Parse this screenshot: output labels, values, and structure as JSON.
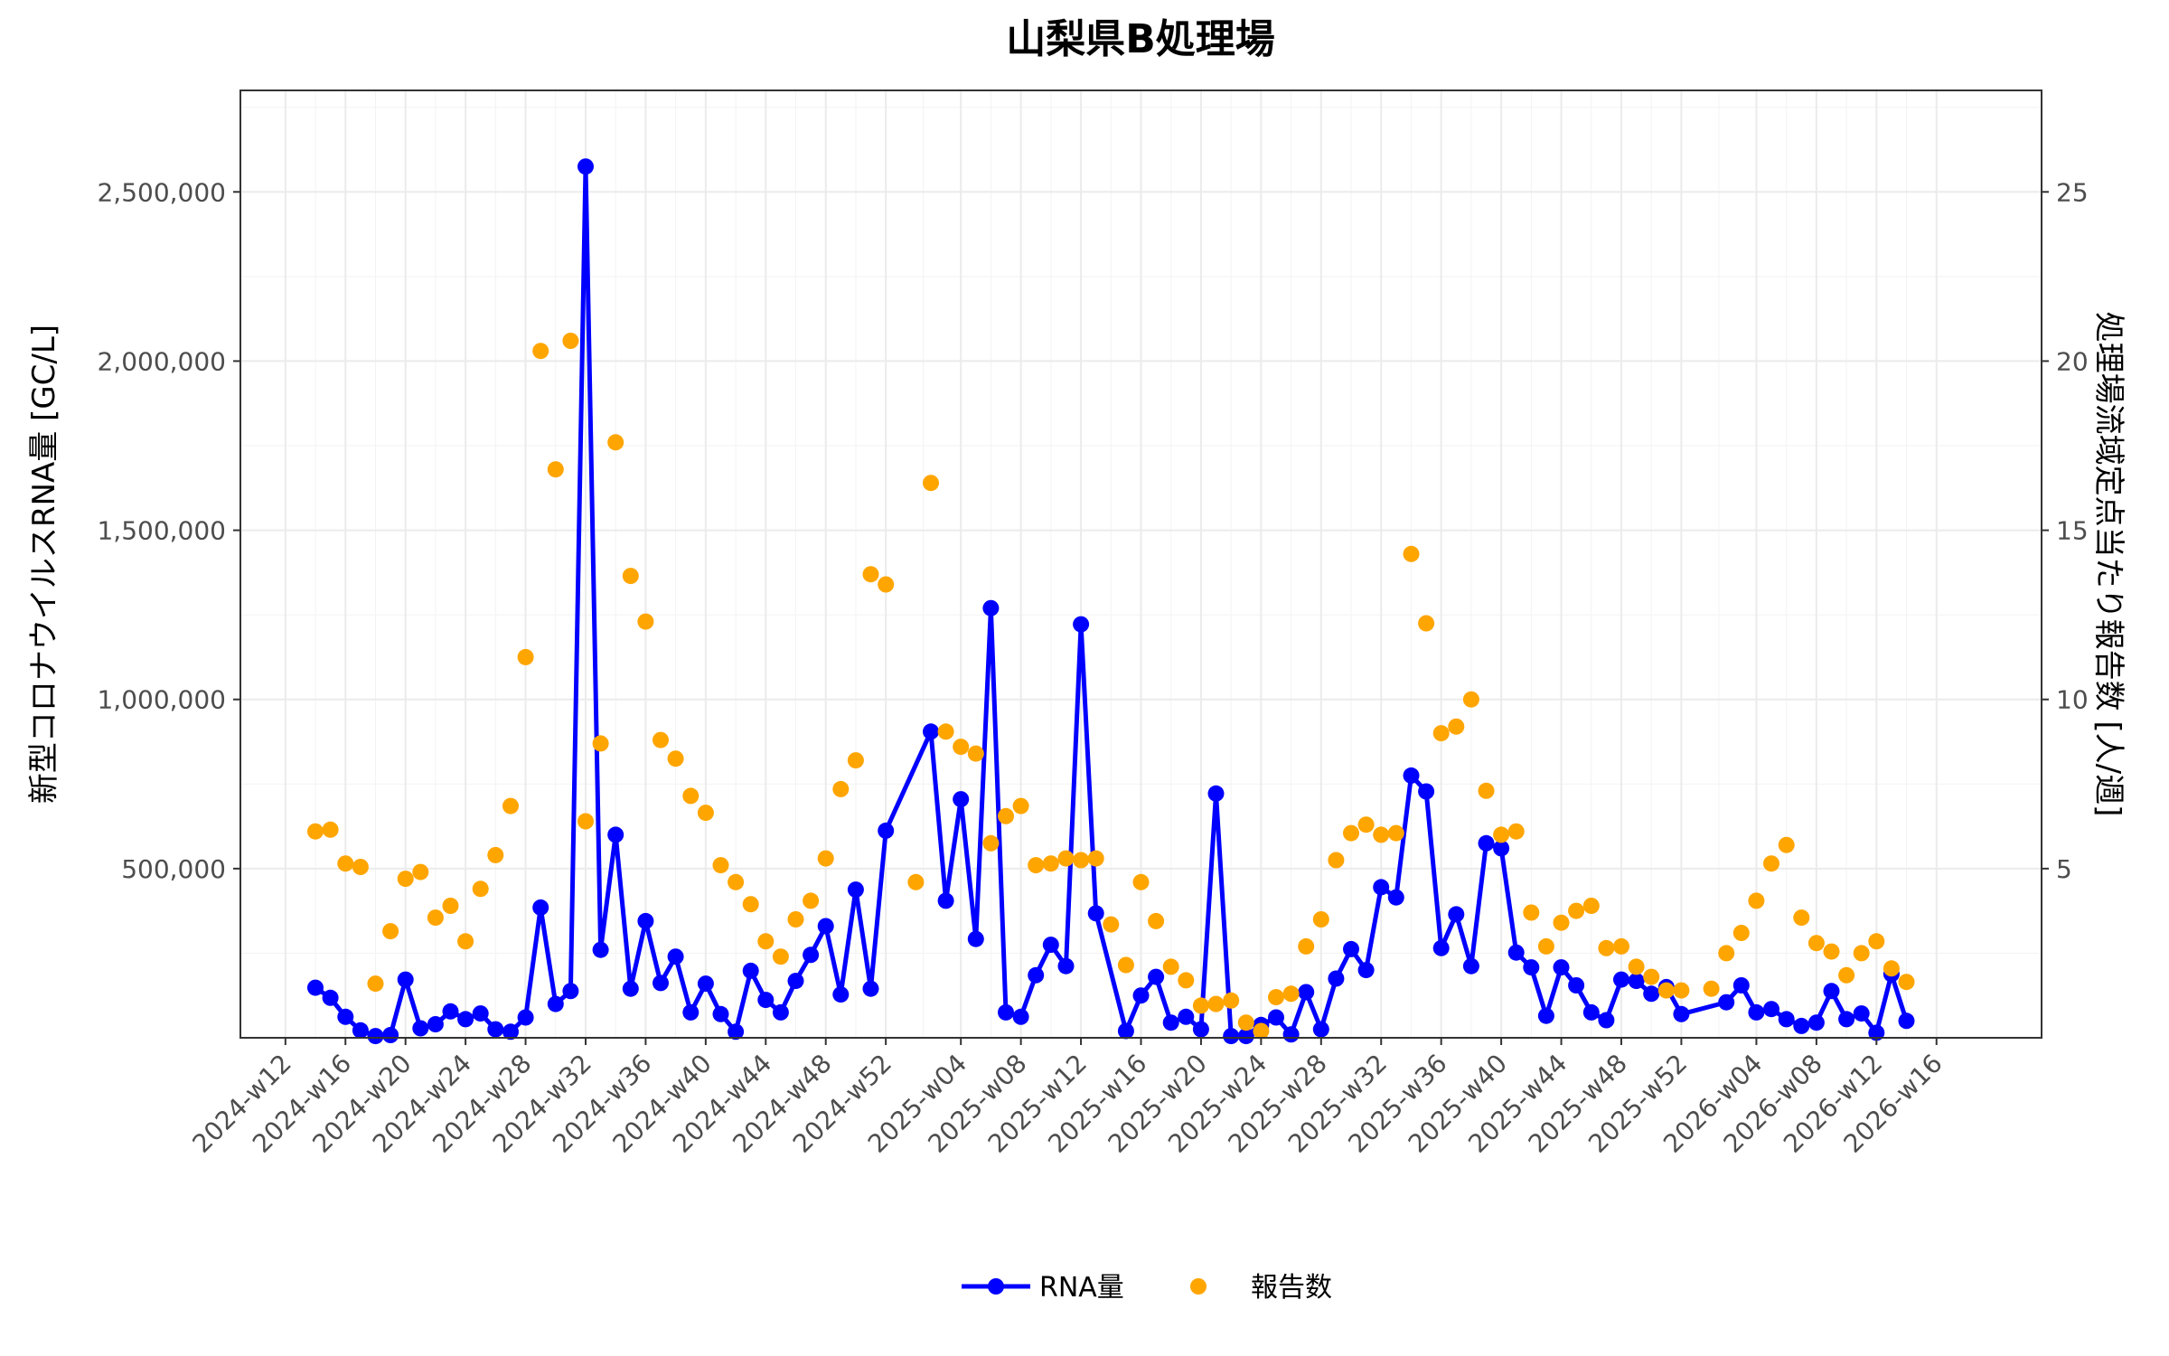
{
  "chart_data": {
    "type": "line",
    "title": "山梨県B処理場",
    "ylabel": "新型コロナウイルスRNA量 [GC/L]",
    "y2label": "処理場流域定点当たり報告数 [人/週]",
    "xlabel": "",
    "ylim": [
      0,
      2800000
    ],
    "y2lim": [
      0,
      28
    ],
    "yticks": [
      500000,
      1000000,
      1500000,
      2000000,
      2500000
    ],
    "ytick_labels": [
      "500,000",
      "1,000,000",
      "1,500,000",
      "2,000,000",
      "2,500,000"
    ],
    "y2ticks": [
      5,
      10,
      15,
      20,
      25
    ],
    "y2tick_labels": [
      "5",
      "10",
      "15",
      "20",
      "25"
    ],
    "xticks": [
      "2024-w12",
      "2024-w16",
      "2024-w20",
      "2024-w24",
      "2024-w28",
      "2024-w32",
      "2024-w36",
      "2024-w40",
      "2024-w44",
      "2024-w48",
      "2024-w52",
      "2025-w04",
      "2025-w08",
      "2025-w12",
      "2025-w16",
      "2025-w20",
      "2025-w24",
      "2025-w28",
      "2025-w32",
      "2025-w36",
      "2025-w40",
      "2025-w44",
      "2025-w48",
      "2025-w52",
      "2026-w04",
      "2026-w08",
      "2026-w12",
      "2026-w16"
    ],
    "grid": true,
    "legend_position": "bottom",
    "series": [
      {
        "name": "RNA量",
        "type": "line+points",
        "axis": "left",
        "color": "#0000FF",
        "x": [
          "2024-w14",
          "2024-w15",
          "2024-w16",
          "2024-w17",
          "2024-w18",
          "2024-w19",
          "2024-w20",
          "2024-w21",
          "2024-w22",
          "2024-w23",
          "2024-w24",
          "2024-w25",
          "2024-w26",
          "2024-w27",
          "2024-w28",
          "2024-w29",
          "2024-w30",
          "2024-w31",
          "2024-w32",
          "2024-w33",
          "2024-w34",
          "2024-w35",
          "2024-w36",
          "2024-w37",
          "2024-w38",
          "2024-w39",
          "2024-w40",
          "2024-w41",
          "2024-w42",
          "2024-w43",
          "2024-w44",
          "2024-w45",
          "2024-w46",
          "2024-w47",
          "2024-w48",
          "2024-w49",
          "2024-w50",
          "2024-w51",
          "2024-w52",
          "2025-w02",
          "2025-w03",
          "2025-w04",
          "2025-w05",
          "2025-w06",
          "2025-w07",
          "2025-w08",
          "2025-w09",
          "2025-w10",
          "2025-w11",
          "2025-w12",
          "2025-w13",
          "2025-w15",
          "2025-w16",
          "2025-w17",
          "2025-w18",
          "2025-w19",
          "2025-w20",
          "2025-w21",
          "2025-w22",
          "2025-w23",
          "2025-w24",
          "2025-w25",
          "2025-w26",
          "2025-w27",
          "2025-w28",
          "2025-w29",
          "2025-w30",
          "2025-w31",
          "2025-w32",
          "2025-w33",
          "2025-w34",
          "2025-w35",
          "2025-w36",
          "2025-w37",
          "2025-w38",
          "2025-w39",
          "2025-w40",
          "2025-w41",
          "2025-w42",
          "2025-w43",
          "2025-w44",
          "2025-w45",
          "2025-w46",
          "2025-w47",
          "2025-w48",
          "2025-w49",
          "2025-w50",
          "2025-w51",
          "2025-w52",
          "2026-w02",
          "2026-w03",
          "2026-w04",
          "2026-w05",
          "2026-w06",
          "2026-w07",
          "2026-w08",
          "2026-w09",
          "2026-w10",
          "2026-w11",
          "2026-w12",
          "2026-w13",
          "2026-w14"
        ],
        "values": [
          148000,
          118000,
          62000,
          22000,
          5000,
          8000,
          172000,
          28000,
          40000,
          78000,
          55000,
          72000,
          25000,
          18000,
          60000,
          385000,
          100000,
          138000,
          2575000,
          260000,
          600000,
          145000,
          345000,
          162000,
          240000,
          75000,
          160000,
          70000,
          18000,
          198000,
          112000,
          75000,
          168000,
          245000,
          330000,
          128000,
          438000,
          145000,
          612000,
          905000,
          405000,
          705000,
          292000,
          1270000,
          75000,
          62000,
          185000,
          275000,
          212000,
          1222000,
          368000,
          20000,
          125000,
          180000,
          45000,
          62000,
          25000,
          722000,
          5000,
          5000,
          38000,
          60000,
          10000,
          135000,
          25000,
          175000,
          262000,
          200000,
          445000,
          415000,
          775000,
          728000,
          265000,
          365000,
          212000,
          575000,
          560000,
          252000,
          208000,
          65000,
          208000,
          155000,
          75000,
          52000,
          172000,
          168000,
          130000,
          150000,
          70000,
          105000,
          155000,
          75000,
          85000,
          55000,
          35000,
          45000,
          138000,
          55000,
          72000,
          15000,
          188000,
          50000
        ]
      },
      {
        "name": "報告数",
        "type": "points",
        "axis": "right",
        "color": "#FFA500",
        "x": [
          "2024-w14",
          "2024-w15",
          "2024-w16",
          "2024-w17",
          "2024-w18",
          "2024-w19",
          "2024-w20",
          "2024-w21",
          "2024-w22",
          "2024-w23",
          "2024-w24",
          "2024-w25",
          "2024-w26",
          "2024-w27",
          "2024-w28",
          "2024-w29",
          "2024-w30",
          "2024-w31",
          "2024-w32",
          "2024-w33",
          "2024-w34",
          "2024-w35",
          "2024-w36",
          "2024-w37",
          "2024-w38",
          "2024-w39",
          "2024-w40",
          "2024-w41",
          "2024-w42",
          "2024-w43",
          "2024-w44",
          "2024-w45",
          "2024-w46",
          "2024-w47",
          "2024-w48",
          "2024-w49",
          "2024-w50",
          "2024-w51",
          "2024-w52",
          "2025-w01",
          "2025-w02",
          "2025-w03",
          "2025-w04",
          "2025-w05",
          "2025-w06",
          "2025-w07",
          "2025-w08",
          "2025-w09",
          "2025-w10",
          "2025-w11",
          "2025-w12",
          "2025-w13",
          "2025-w14",
          "2025-w15",
          "2025-w16",
          "2025-w17",
          "2025-w18",
          "2025-w19",
          "2025-w20",
          "2025-w21",
          "2025-w22",
          "2025-w23",
          "2025-w24",
          "2025-w25",
          "2025-w26",
          "2025-w27",
          "2025-w28",
          "2025-w29",
          "2025-w30",
          "2025-w31",
          "2025-w32",
          "2025-w33",
          "2025-w34",
          "2025-w35",
          "2025-w36",
          "2025-w37",
          "2025-w38",
          "2025-w39",
          "2025-w40",
          "2025-w41",
          "2025-w42",
          "2025-w43",
          "2025-w44",
          "2025-w45",
          "2025-w46",
          "2025-w47",
          "2025-w48",
          "2025-w49",
          "2025-w50",
          "2025-w51",
          "2025-w52",
          "2026-w01",
          "2026-w02",
          "2026-w03",
          "2026-w04",
          "2026-w05",
          "2026-w06",
          "2026-w07",
          "2026-w08",
          "2026-w09",
          "2026-w10",
          "2026-w11",
          "2026-w12",
          "2026-w13",
          "2026-w14"
        ],
        "values": [
          6.1,
          6.15,
          5.15,
          5.05,
          1.6,
          3.15,
          4.7,
          4.9,
          3.55,
          3.9,
          2.85,
          4.4,
          5.4,
          6.85,
          11.25,
          20.3,
          16.8,
          20.6,
          6.4,
          8.7,
          17.6,
          13.65,
          12.3,
          8.8,
          8.25,
          7.15,
          6.65,
          5.1,
          4.6,
          3.95,
          2.85,
          2.4,
          3.5,
          4.05,
          5.3,
          7.35,
          8.2,
          13.7,
          13.4,
          4.6,
          16.4,
          9.05,
          8.6,
          8.4,
          5.75,
          6.55,
          6.85,
          5.1,
          5.15,
          5.3,
          5.25,
          5.3,
          3.35,
          2.15,
          4.6,
          3.45,
          2.1,
          1.7,
          0.95,
          1.0,
          1.1,
          0.45,
          0.2,
          1.2,
          1.3,
          2.7,
          3.5,
          5.25,
          6.05,
          6.3,
          6.0,
          6.05,
          14.3,
          12.25,
          9.0,
          9.2,
          10.0,
          7.3,
          6.0,
          6.1,
          3.7,
          2.7,
          3.4,
          3.75,
          3.9,
          2.65,
          2.7,
          2.1,
          1.8,
          1.4,
          1.4,
          1.45,
          2.5,
          3.1,
          4.05,
          5.15,
          5.7,
          3.55,
          2.8,
          2.55,
          1.85,
          2.5,
          2.85,
          2.05,
          1.65
        ]
      }
    ]
  }
}
